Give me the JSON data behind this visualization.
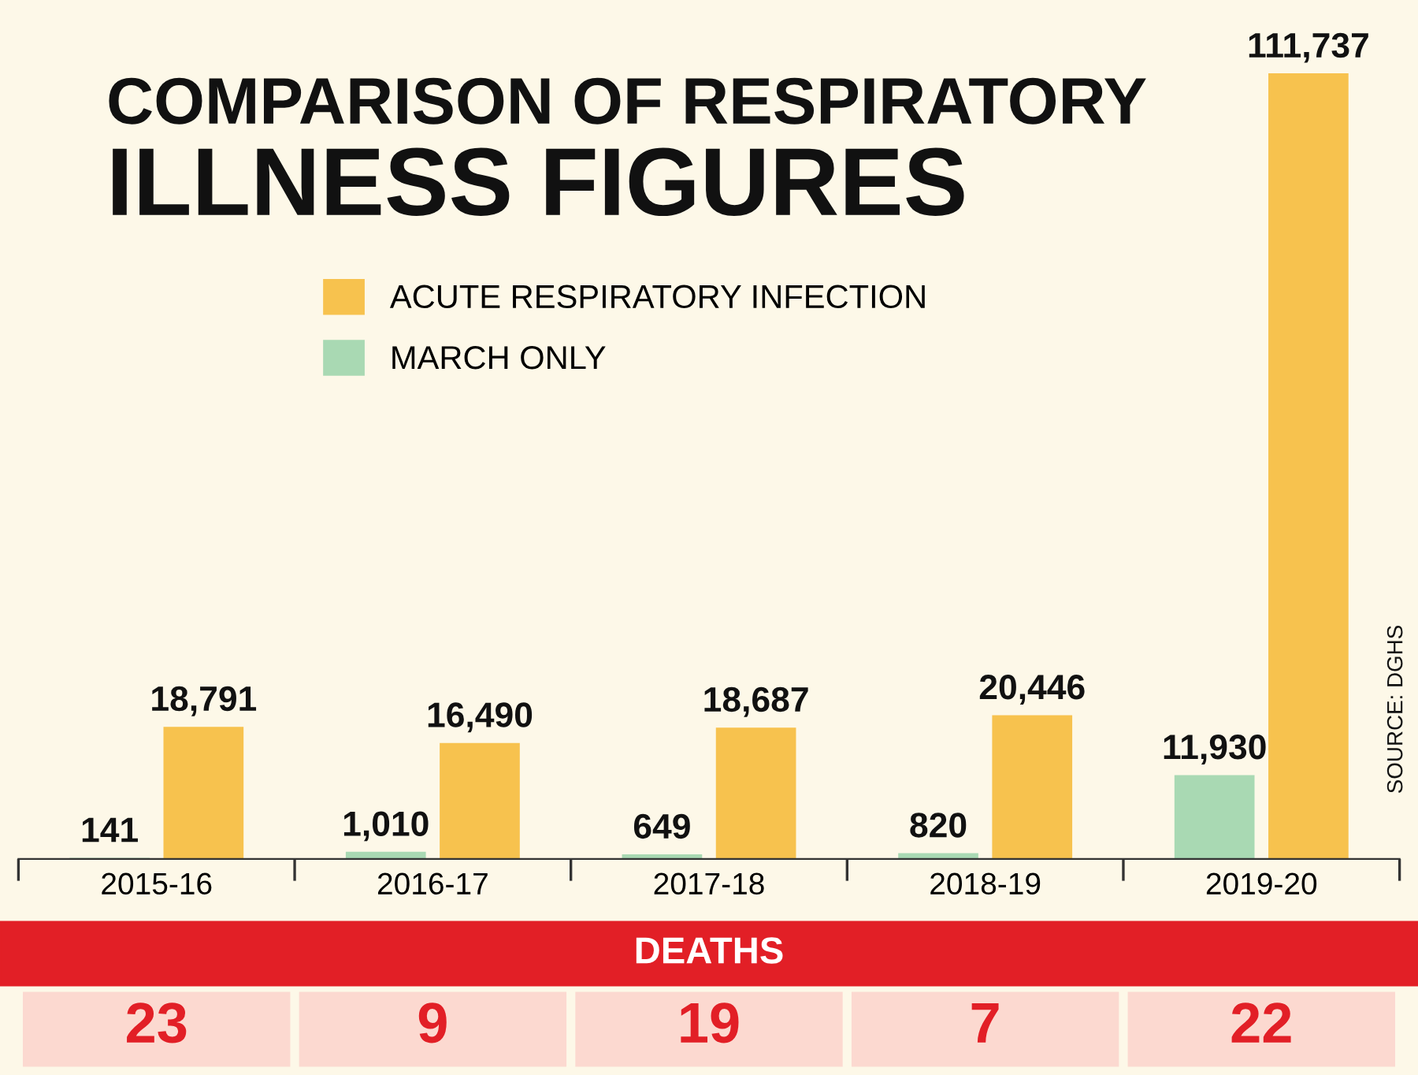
{
  "chart_data": {
    "type": "bar",
    "title": "COMPARISON OF RESPIRATORY\nILLNESS FIGURES",
    "categories": [
      "2015-16",
      "2016-17",
      "2017-18",
      "2018-19",
      "2019-20"
    ],
    "series": [
      {
        "name": "MARCH ONLY",
        "color": "#a9d9b3",
        "values": [
          141,
          1010,
          649,
          820,
          11930
        ],
        "value_labels": [
          "141",
          "1,010",
          "649",
          "820",
          "11,930"
        ]
      },
      {
        "name": "ACUTE RESPIRATORY INFECTION",
        "color": "#f7c24e",
        "values": [
          18791,
          16490,
          18687,
          20446,
          111737
        ],
        "value_labels": [
          "18,791",
          "16,490",
          "18,687",
          "20,446",
          "111,737"
        ]
      }
    ],
    "legend": "left",
    "grid": false,
    "annotations": [
      "DEATHS",
      "23",
      "9",
      "19",
      "7",
      "22",
      "SOURCE: DGHS"
    ]
  }
}
